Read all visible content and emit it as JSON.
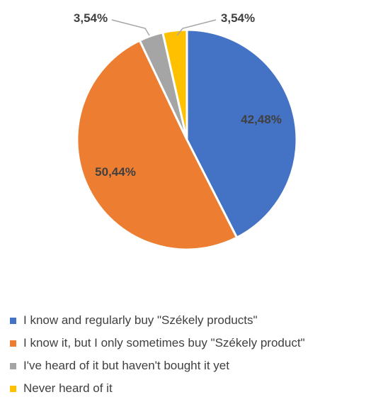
{
  "chart_data": {
    "type": "pie",
    "title": "",
    "legend_position": "bottom",
    "slices": [
      {
        "label": "I know and regularly buy \"Székely products\"",
        "value": 42.48,
        "display": "42,48%",
        "color": "#4472C4"
      },
      {
        "label": "I know it, but I only sometimes buy \"Székely product\"",
        "value": 50.44,
        "display": "50,44%",
        "color": "#ED7D31"
      },
      {
        "label": "I've heard of it but haven't bought it yet",
        "value": 3.54,
        "display": "3,54%",
        "color": "#A5A5A5"
      },
      {
        "label": "Never heard of it",
        "value": 3.54,
        "display": "3,54%",
        "color": "#FFC000"
      }
    ]
  }
}
